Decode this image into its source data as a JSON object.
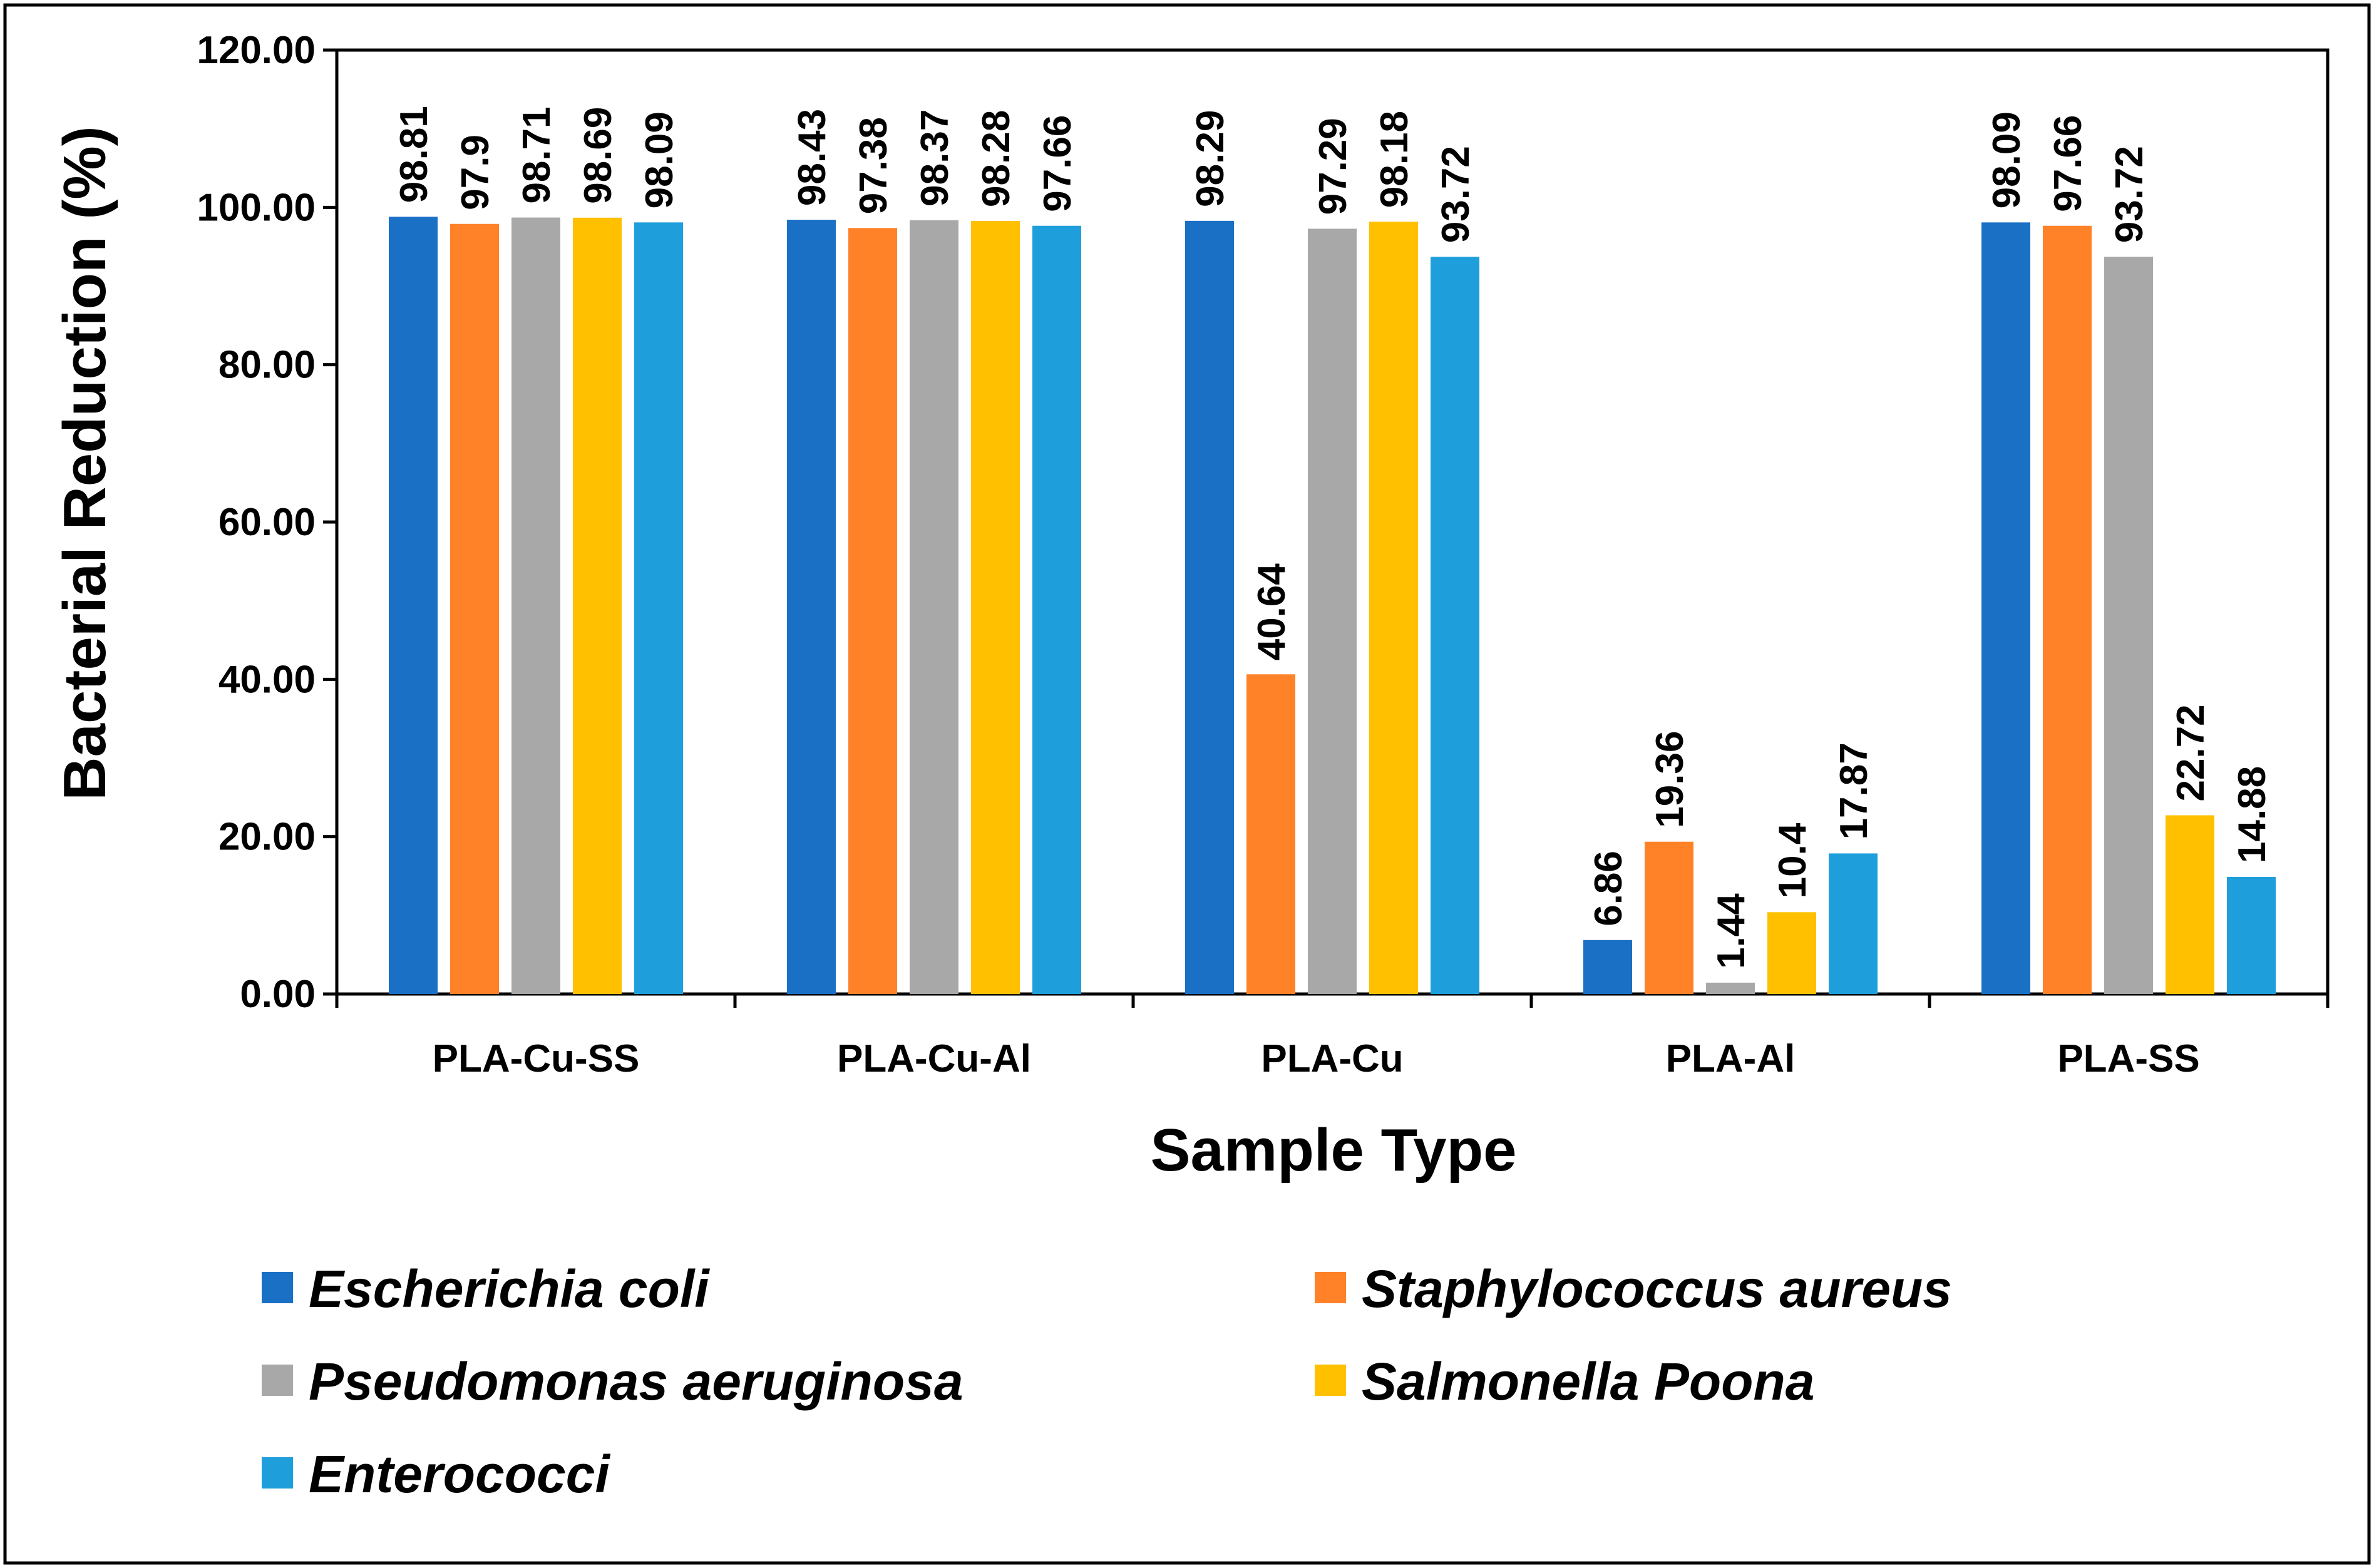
{
  "chart_data": {
    "type": "bar",
    "title": "",
    "xlabel": "Sample Type",
    "ylabel": "Bacterial Reduction (%)",
    "ylim": [
      0,
      120
    ],
    "ytick_step": 20,
    "yticks": [
      "0.00",
      "20.00",
      "40.00",
      "60.00",
      "80.00",
      "100.00",
      "120.00"
    ],
    "grid": false,
    "legend_position": "bottom",
    "categories": [
      "PLA-Cu-SS",
      "PLA-Cu-Al",
      "PLA-Cu",
      "PLA-Al",
      "PLA-SS"
    ],
    "series": [
      {
        "name": "Escherichia coli",
        "color": "#1A70C5",
        "values": [
          98.81,
          98.43,
          98.29,
          6.86,
          98.09
        ],
        "labels": [
          "98.81",
          "98.43",
          "98.29",
          "6.86",
          "98.09"
        ]
      },
      {
        "name": "Staphylococcus aureus",
        "color": "#FF8229",
        "values": [
          97.9,
          97.38,
          40.64,
          19.36,
          97.66
        ],
        "labels": [
          "97.9",
          "97.38",
          "40.64",
          "19.36",
          "97.66"
        ]
      },
      {
        "name": "Pseudomonas aeruginosa",
        "color": "#A8A8A8",
        "values": [
          98.71,
          98.37,
          97.29,
          1.44,
          93.72
        ],
        "labels": [
          "98.71",
          "98.37",
          "97.29",
          "1.44",
          "93.72"
        ]
      },
      {
        "name": "Salmonella Poona",
        "color": "#FFC000",
        "values": [
          98.69,
          98.28,
          98.18,
          10.4,
          22.72
        ],
        "labels": [
          "98.69",
          "98.28",
          "98.18",
          "10.4",
          "22.72"
        ]
      },
      {
        "name": "Enterococci",
        "color": "#1E9FDC",
        "values": [
          98.09,
          97.66,
          93.72,
          17.87,
          14.88
        ],
        "labels": [
          "98.09",
          "97.66",
          "93.72",
          "17.87",
          "14.88"
        ]
      }
    ]
  }
}
